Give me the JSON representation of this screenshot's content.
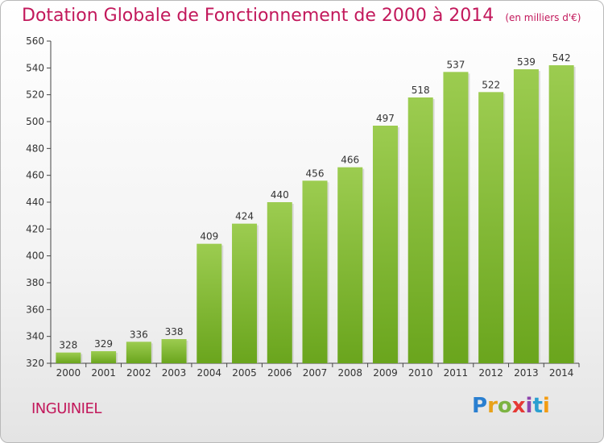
{
  "header": {
    "title": "Dotation Globale de Fonctionnement de 2000 à 2014",
    "subtitle": "(en milliers d'€)"
  },
  "footer": {
    "commune": "INGUINIEL",
    "logo_text": "Proxiti"
  },
  "colors": {
    "bar_light": "#9ccc50",
    "bar_dark": "#6aa51d",
    "title": "#c2185b"
  },
  "chart_data": {
    "type": "bar",
    "title": "Dotation Globale de Fonctionnement de 2000 à 2014",
    "subtitle": "(en milliers d'€)",
    "categories": [
      "2000",
      "2001",
      "2002",
      "2003",
      "2004",
      "2005",
      "2006",
      "2007",
      "2008",
      "2009",
      "2010",
      "2011",
      "2012",
      "2013",
      "2014"
    ],
    "values": [
      328,
      329,
      336,
      338,
      409,
      424,
      440,
      456,
      466,
      497,
      518,
      537,
      522,
      539,
      542
    ],
    "ylim": [
      320,
      560
    ],
    "yticks": [
      320,
      340,
      360,
      380,
      400,
      420,
      440,
      460,
      480,
      500,
      520,
      540,
      560
    ],
    "grid": false,
    "legend": "none"
  }
}
